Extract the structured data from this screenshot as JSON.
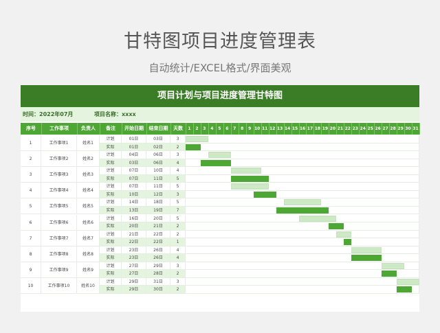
{
  "title": "甘特图项目进度管理表",
  "subtitle": "自动统计/EXCEL格式/界面美观",
  "sheet_title": "项目计划与项目进度管理甘特图",
  "time_label": "时间：2022年07月",
  "project_label": "项目名称：xxxx",
  "headers": [
    "序号",
    "工作事项",
    "负责人",
    "备注",
    "开始日期",
    "结束日期",
    "天数"
  ],
  "days": [
    1,
    2,
    3,
    4,
    5,
    6,
    7,
    8,
    9,
    10,
    11,
    12,
    13,
    14,
    15,
    16,
    17,
    18,
    19,
    20,
    21,
    22,
    23,
    24,
    25,
    26,
    27,
    28,
    29,
    30,
    31
  ],
  "colors": {
    "dark": "#3a7d26",
    "accent": "#4ea634",
    "light": "#e5f4df"
  },
  "rows": [
    {
      "no": "1",
      "task": "工作事项1",
      "owner": "姓名1",
      "plan": {
        "label": "计划",
        "start": "01日",
        "end": "03日",
        "days": "3",
        "s": 1,
        "e": 3
      },
      "actual": {
        "label": "实际",
        "start": "01日",
        "end": "02日",
        "days": "2",
        "s": 1,
        "e": 2
      }
    },
    {
      "no": "2",
      "task": "工作事项2",
      "owner": "姓名2",
      "plan": {
        "label": "计划",
        "start": "04日",
        "end": "06日",
        "days": "3",
        "s": 4,
        "e": 6
      },
      "actual": {
        "label": "实际",
        "start": "03日",
        "end": "06日",
        "days": "4",
        "s": 3,
        "e": 6
      }
    },
    {
      "no": "3",
      "task": "工作事项3",
      "owner": "姓名3",
      "plan": {
        "label": "计划",
        "start": "07日",
        "end": "10日",
        "days": "4",
        "s": 7,
        "e": 10
      },
      "actual": {
        "label": "实际",
        "start": "07日",
        "end": "11日",
        "days": "5",
        "s": 7,
        "e": 11
      }
    },
    {
      "no": "4",
      "task": "工作事项4",
      "owner": "姓名4",
      "plan": {
        "label": "计划",
        "start": "07日",
        "end": "11日",
        "days": "5",
        "s": 7,
        "e": 11
      },
      "actual": {
        "label": "实际",
        "start": "10日",
        "end": "12日",
        "days": "3",
        "s": 10,
        "e": 12
      }
    },
    {
      "no": "5",
      "task": "工作事项5",
      "owner": "姓名5",
      "plan": {
        "label": "计划",
        "start": "14日",
        "end": "18日",
        "days": "5",
        "s": 14,
        "e": 18
      },
      "actual": {
        "label": "实际",
        "start": "13日",
        "end": "19日",
        "days": "7",
        "s": 13,
        "e": 19
      }
    },
    {
      "no": "6",
      "task": "工作事项6",
      "owner": "姓名6",
      "plan": {
        "label": "计划",
        "start": "16日",
        "end": "20日",
        "days": "5",
        "s": 16,
        "e": 20
      },
      "actual": {
        "label": "实际",
        "start": "20日",
        "end": "21日",
        "days": "2",
        "s": 20,
        "e": 21
      }
    },
    {
      "no": "7",
      "task": "工作事项7",
      "owner": "姓名7",
      "plan": {
        "label": "计划",
        "start": "21日",
        "end": "22日",
        "days": "2",
        "s": 21,
        "e": 22
      },
      "actual": {
        "label": "实际",
        "start": "22日",
        "end": "22日",
        "days": "1",
        "s": 22,
        "e": 22
      }
    },
    {
      "no": "8",
      "task": "工作事项8",
      "owner": "姓名8",
      "plan": {
        "label": "计划",
        "start": "23日",
        "end": "26日",
        "days": "4",
        "s": 23,
        "e": 26
      },
      "actual": {
        "label": "实际",
        "start": "23日",
        "end": "26日",
        "days": "4",
        "s": 23,
        "e": 26
      }
    },
    {
      "no": "9",
      "task": "工作事项9",
      "owner": "姓名9",
      "plan": {
        "label": "计划",
        "start": "27日",
        "end": "29日",
        "days": "3",
        "s": 27,
        "e": 29
      },
      "actual": {
        "label": "实际",
        "start": "27日",
        "end": "28日",
        "days": "2",
        "s": 27,
        "e": 28
      }
    },
    {
      "no": "10",
      "task": "工作事项10",
      "owner": "姓名10",
      "plan": {
        "label": "计划",
        "start": "29日",
        "end": "31日",
        "days": "3",
        "s": 29,
        "e": 31
      },
      "actual": {
        "label": "实际",
        "start": "29日",
        "end": "30日",
        "days": "2",
        "s": 29,
        "e": 30
      }
    }
  ]
}
